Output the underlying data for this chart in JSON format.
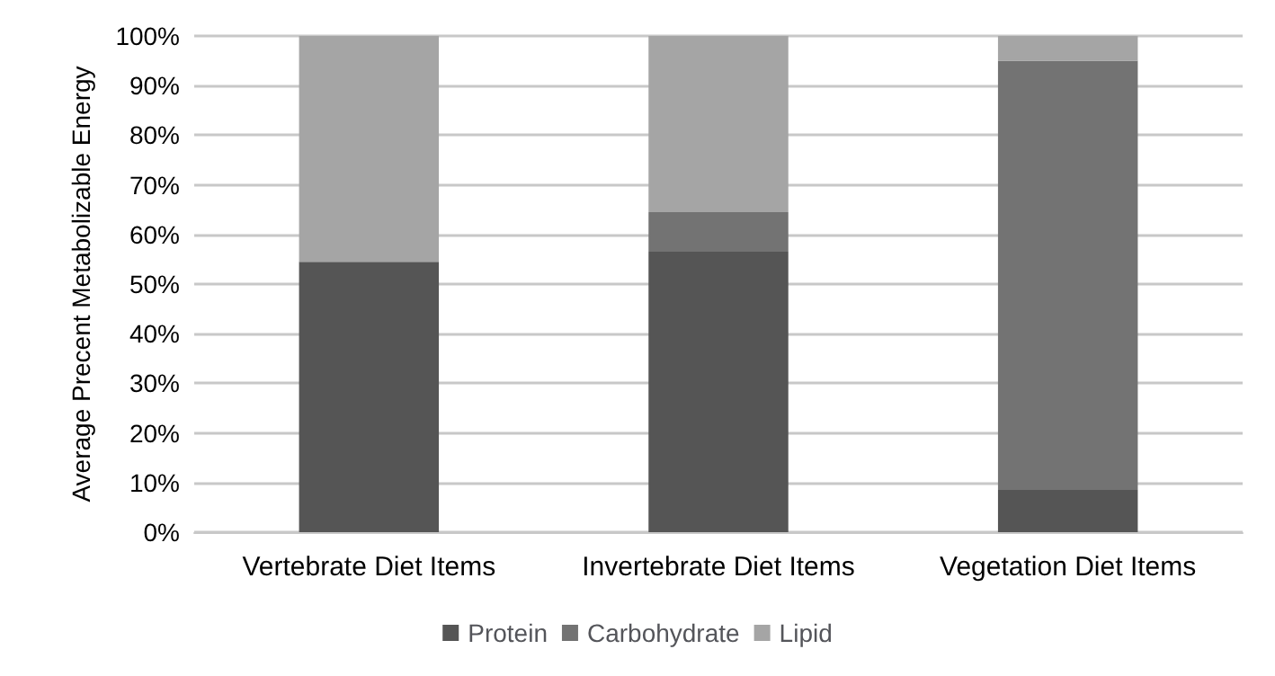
{
  "chart_data": {
    "type": "bar",
    "stacked": true,
    "ylabel": "Average Precent Metabolizable Energy",
    "categories": [
      "Vertebrate Diet Items",
      "Invertebrate Diet Items",
      "Vegetation Diet Items"
    ],
    "series": [
      {
        "name": "Protein",
        "color": "#555555",
        "values": [
          54.5,
          56.5,
          8.5
        ]
      },
      {
        "name": "Carbohydrate",
        "color": "#737373",
        "values": [
          0,
          8,
          86.5
        ]
      },
      {
        "name": "Lipid",
        "color": "#a5a5a5",
        "values": [
          45.5,
          35.5,
          5
        ]
      }
    ],
    "ylim": [
      0,
      100
    ],
    "yticks": [
      {
        "value": 0,
        "label": "0%"
      },
      {
        "value": 10,
        "label": "10%"
      },
      {
        "value": 20,
        "label": "20%"
      },
      {
        "value": 30,
        "label": "30%"
      },
      {
        "value": 40,
        "label": "40%"
      },
      {
        "value": 50,
        "label": "50%"
      },
      {
        "value": 60,
        "label": "60%"
      },
      {
        "value": 70,
        "label": "70%"
      },
      {
        "value": 80,
        "label": "80%"
      },
      {
        "value": 90,
        "label": "90%"
      },
      {
        "value": 100,
        "label": "100%"
      }
    ],
    "grid": "y",
    "legend": "bottom"
  }
}
